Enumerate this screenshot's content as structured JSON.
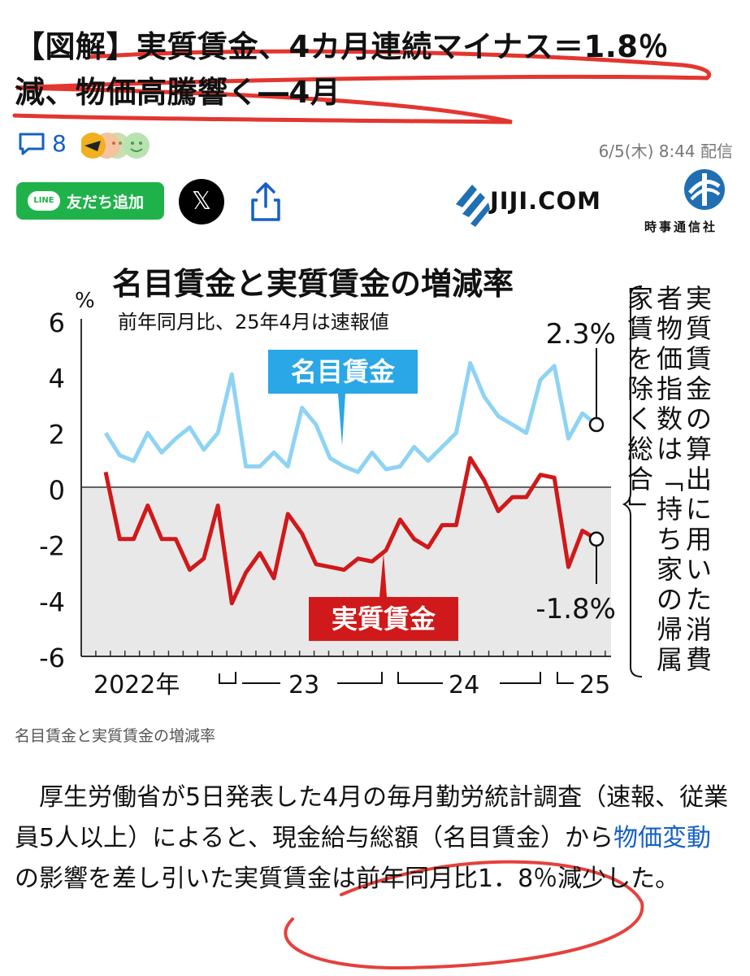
{
  "article": {
    "title": "【図解】実質賃金、4カ月連続マイナス＝1.8％減、物価高騰響く―4月",
    "comment_count": "8",
    "published": "6/5(木) 8:44 配信",
    "source_logo_text": "JIJI.COM",
    "source_name": "時事通信社",
    "caption": "名目賃金と実質賃金の増減率",
    "body": {
      "part1": "厚生労働省が5日発表した4月の毎月勤労統計調査（速報、従業員5人以上）によると、現金給与総額（名目賃金）から",
      "link": "物価変動",
      "part2": "の影響を差し引いた実質賃金は前年同月比1．8％減少した。"
    }
  },
  "share": {
    "line_badge": "LINE",
    "line_label": "友だち追加",
    "x_label": "𝕏"
  },
  "icons": {
    "comment": "comment-icon",
    "share": "share-icon",
    "jiji": "jiji-logo-icon",
    "jiji_emblem": "jiji-emblem-icon"
  },
  "colors": {
    "nominal": "#8fd3f4",
    "real": "#d0191a",
    "nominal_label_bg": "#2aa7e6",
    "real_label_bg": "#d0191a",
    "negative_area": "#e8e8e8",
    "annotation_red": "#e0201a",
    "link": "#1560c6",
    "line_green": "#20b24a"
  },
  "chart_data": {
    "type": "line",
    "title": "名目賃金と実質賃金の増減率",
    "subtitle": "前年同月比、25年4月は速報値",
    "ylabel": "%",
    "ylim": [
      -6,
      6
    ],
    "yticks": [
      "6",
      "4",
      "2",
      "0",
      "-2",
      "-4",
      "-6"
    ],
    "x_labels": [
      "2022年",
      "23",
      "24",
      "25"
    ],
    "side_note": "実質賃金の算出に用いた消費者物価指数は「持ち家の帰属家賃を除く総合」",
    "series": [
      {
        "name": "名目賃金",
        "end_label": "2.3%",
        "values": [
          2.0,
          1.2,
          1.0,
          2.0,
          1.3,
          1.8,
          2.2,
          1.4,
          2.0,
          4.1,
          0.8,
          0.8,
          1.3,
          0.8,
          2.9,
          2.3,
          1.1,
          0.8,
          0.6,
          1.3,
          0.7,
          0.8,
          1.5,
          1.0,
          1.5,
          2.0,
          4.5,
          3.3,
          2.6,
          2.3,
          2.0,
          3.9,
          4.4,
          1.8,
          2.7,
          2.3
        ]
      },
      {
        "name": "実質賃金",
        "end_label": "-1.8%",
        "values": [
          0.6,
          -1.8,
          -1.8,
          -0.6,
          -1.8,
          -1.8,
          -2.9,
          -2.5,
          -0.6,
          -4.1,
          -3.0,
          -2.3,
          -3.2,
          -0.9,
          -1.6,
          -2.7,
          -2.8,
          -2.9,
          -2.5,
          -2.6,
          -2.2,
          -1.1,
          -1.8,
          -2.1,
          -1.3,
          -1.3,
          1.1,
          0.3,
          -0.8,
          -0.3,
          -0.3,
          0.5,
          0.4,
          -2.8,
          -1.5,
          -1.8
        ]
      }
    ]
  }
}
